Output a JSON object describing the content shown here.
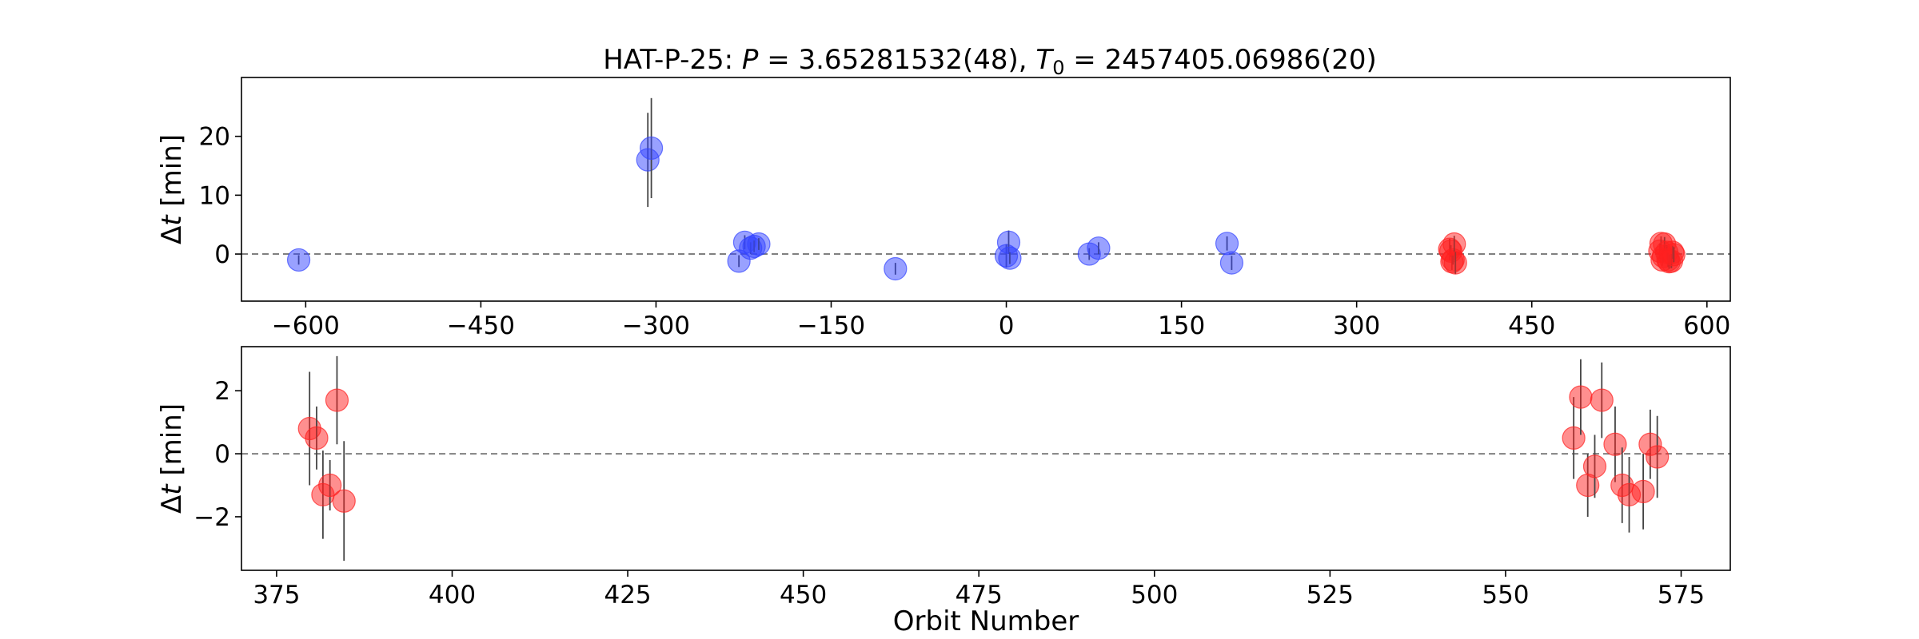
{
  "chart_data": {
    "title": "HAT-P-25: P = 3.65281532(48), T0 = 2457405.06986(20)",
    "title_parts": {
      "prefix": "HAT-P-25: ",
      "p_symbol": "P",
      "p_value": " = 3.65281532(48), ",
      "t_symbol": "T",
      "t_subscript": "0",
      "t_value": " = 2457405.06986(20)"
    },
    "colors": {
      "blue": "#3344ff",
      "red": "#ff2020",
      "reference_line": "#808080",
      "error_bar": "#444444"
    },
    "panels": [
      {
        "type": "scatter",
        "xlabel": "",
        "ylabel": "Δt [min]",
        "ylabel_parts": {
          "delta": "Δ",
          "var": "t",
          "unit": " [min]"
        },
        "xlim": [
          -655,
          620
        ],
        "ylim": [
          -8,
          30
        ],
        "xticks": [
          -600,
          -450,
          -300,
          -150,
          0,
          150,
          300,
          450,
          600
        ],
        "xtick_labels": [
          "−600",
          "−450",
          "−300",
          "−150",
          "0",
          "150",
          "300",
          "450",
          "600"
        ],
        "yticks": [
          0,
          10,
          20
        ],
        "ytick_labels": [
          "0",
          "10",
          "20"
        ],
        "reference_line_y": 0,
        "grid": false,
        "series": [
          {
            "color": "blue",
            "points": [
              {
                "x": -606,
                "y": -1.0,
                "err": 0.8
              },
              {
                "x": -307,
                "y": 16.0,
                "err": 8.0
              },
              {
                "x": -304,
                "y": 18.0,
                "err": 8.5
              },
              {
                "x": -229,
                "y": -1.2,
                "err": 1.0
              },
              {
                "x": -224,
                "y": 2.0,
                "err": 1.2
              },
              {
                "x": -219,
                "y": 1.0,
                "err": 1.0
              },
              {
                "x": -216,
                "y": 1.3,
                "err": 1.0
              },
              {
                "x": -212,
                "y": 1.7,
                "err": 1.0
              },
              {
                "x": -95,
                "y": -2.5,
                "err": 1.0
              },
              {
                "x": 0,
                "y": -0.3,
                "err": 2.0
              },
              {
                "x": 2,
                "y": 2.0,
                "err": 2.0
              },
              {
                "x": 3,
                "y": -0.7,
                "err": 1.0
              },
              {
                "x": 71,
                "y": 0.0,
                "err": 1.0
              },
              {
                "x": 79,
                "y": 1.0,
                "err": 1.0
              },
              {
                "x": 189,
                "y": 1.8,
                "err": 1.2
              },
              {
                "x": 193,
                "y": -1.5,
                "err": 1.2
              }
            ]
          },
          {
            "color": "red",
            "points": [
              {
                "x": 379.7,
                "y": 0.8,
                "err": 1.8
              },
              {
                "x": 380.7,
                "y": 0.5,
                "err": 1.0
              },
              {
                "x": 381.6,
                "y": -1.3,
                "err": 1.4
              },
              {
                "x": 382.6,
                "y": -1.0,
                "err": 0.8
              },
              {
                "x": 383.6,
                "y": 1.7,
                "err": 1.4
              },
              {
                "x": 384.6,
                "y": -1.5,
                "err": 1.9
              },
              {
                "x": 559.7,
                "y": 0.5,
                "err": 1.3
              },
              {
                "x": 560.7,
                "y": 1.8,
                "err": 1.2
              },
              {
                "x": 561.7,
                "y": -1.0,
                "err": 1.0
              },
              {
                "x": 562.7,
                "y": -0.4,
                "err": 1.0
              },
              {
                "x": 563.7,
                "y": 1.7,
                "err": 1.2
              },
              {
                "x": 565.6,
                "y": 0.3,
                "err": 1.2
              },
              {
                "x": 566.6,
                "y": -1.0,
                "err": 1.2
              },
              {
                "x": 567.6,
                "y": -1.3,
                "err": 1.2
              },
              {
                "x": 569.6,
                "y": -1.2,
                "err": 1.2
              },
              {
                "x": 570.6,
                "y": 0.3,
                "err": 1.1
              },
              {
                "x": 571.6,
                "y": -0.1,
                "err": 1.3
              }
            ]
          }
        ]
      },
      {
        "type": "scatter",
        "xlabel": "Orbit Number",
        "ylabel": "Δt [min]",
        "ylabel_parts": {
          "delta": "Δ",
          "var": "t",
          "unit": " [min]"
        },
        "xlim": [
          370,
          582
        ],
        "ylim": [
          -3.7,
          3.4
        ],
        "xticks": [
          375,
          400,
          425,
          450,
          475,
          500,
          525,
          550,
          575
        ],
        "xtick_labels": [
          "375",
          "400",
          "425",
          "450",
          "475",
          "500",
          "525",
          "550",
          "575"
        ],
        "yticks": [
          -2,
          0,
          2
        ],
        "ytick_labels": [
          "−2",
          "0",
          "2"
        ],
        "reference_line_y": 0,
        "grid": false,
        "series": [
          {
            "color": "red",
            "points": [
              {
                "x": 379.7,
                "y": 0.8,
                "err": 1.8
              },
              {
                "x": 380.7,
                "y": 0.5,
                "err": 1.0
              },
              {
                "x": 381.6,
                "y": -1.3,
                "err": 1.4
              },
              {
                "x": 382.6,
                "y": -1.0,
                "err": 0.8
              },
              {
                "x": 383.6,
                "y": 1.7,
                "err": 1.4
              },
              {
                "x": 384.6,
                "y": -1.5,
                "err": 1.9
              },
              {
                "x": 559.7,
                "y": 0.5,
                "err": 1.3
              },
              {
                "x": 560.7,
                "y": 1.8,
                "err": 1.2
              },
              {
                "x": 561.7,
                "y": -1.0,
                "err": 1.0
              },
              {
                "x": 562.7,
                "y": -0.4,
                "err": 1.0
              },
              {
                "x": 563.7,
                "y": 1.7,
                "err": 1.2
              },
              {
                "x": 565.6,
                "y": 0.3,
                "err": 1.2
              },
              {
                "x": 566.6,
                "y": -1.0,
                "err": 1.2
              },
              {
                "x": 567.6,
                "y": -1.3,
                "err": 1.2
              },
              {
                "x": 569.6,
                "y": -1.2,
                "err": 1.2
              },
              {
                "x": 570.6,
                "y": 0.3,
                "err": 1.1
              },
              {
                "x": 571.6,
                "y": -0.1,
                "err": 1.3
              }
            ]
          }
        ]
      }
    ]
  }
}
